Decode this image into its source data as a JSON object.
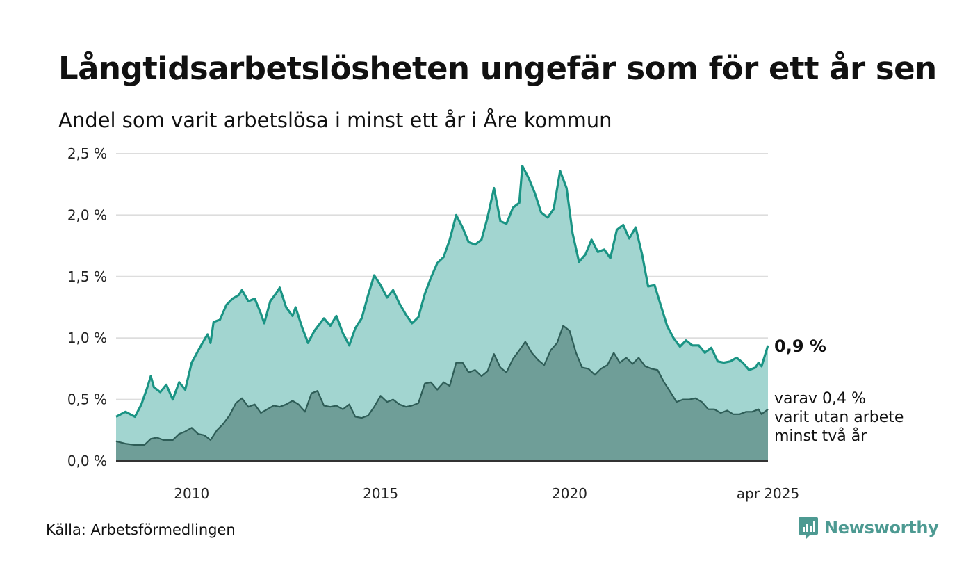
{
  "title": "Långtidsarbetslösheten ungefär som för ett år sen",
  "subtitle": "Andel som varit arbetslösa i minst ett år i Åre kommun",
  "source": "Källa: Arbetsförmedlingen",
  "brand": {
    "name": "Newsworthy",
    "icon": "newsworthy-logo-icon",
    "color": "#4d9a92"
  },
  "annotations": {
    "total_label": "0,9 %",
    "sub_label_lines": [
      "varav 0,4 %",
      "varit utan arbete",
      "minst två år"
    ]
  },
  "chart_data": {
    "type": "area",
    "title": "Långtidsarbetslösheten ungefär som för ett år sen",
    "subtitle": "Andel som varit arbetslösa i minst ett år i Åre kommun",
    "ylim": [
      0,
      2.5
    ],
    "y_ticks": [
      {
        "value": 0.0,
        "label": "0,0 %"
      },
      {
        "value": 0.5,
        "label": "0,5 %"
      },
      {
        "value": 1.0,
        "label": "1,0 %"
      },
      {
        "value": 1.5,
        "label": "1,5 %"
      },
      {
        "value": 2.0,
        "label": "2,0 %"
      },
      {
        "value": 2.5,
        "label": "2,5 %"
      }
    ],
    "x_range": [
      2008.0,
      2025.25
    ],
    "x_ticks": [
      {
        "value": 2010,
        "label": "2010"
      },
      {
        "value": 2015,
        "label": "2015"
      },
      {
        "value": 2020,
        "label": "2020"
      },
      {
        "value": 2025.25,
        "label": "apr 2025"
      }
    ],
    "grid": true,
    "colors": {
      "total_line": "#1a9484",
      "total_fill": "#a2d5d0",
      "long_line": "#2e5d57",
      "long_fill": "#6f9e98",
      "grid": "#dddddd",
      "axis": "#333333"
    },
    "series": [
      {
        "key": "total",
        "points": [
          [
            2008.0,
            0.36
          ],
          [
            2008.25,
            0.4
          ],
          [
            2008.5,
            0.36
          ],
          [
            2008.67,
            0.46
          ],
          [
            2008.83,
            0.6
          ],
          [
            2008.92,
            0.69
          ],
          [
            2009.0,
            0.6
          ],
          [
            2009.17,
            0.56
          ],
          [
            2009.33,
            0.62
          ],
          [
            2009.5,
            0.5
          ],
          [
            2009.67,
            0.64
          ],
          [
            2009.83,
            0.58
          ],
          [
            2010.0,
            0.8
          ],
          [
            2010.25,
            0.94
          ],
          [
            2010.42,
            1.03
          ],
          [
            2010.5,
            0.96
          ],
          [
            2010.58,
            1.13
          ],
          [
            2010.75,
            1.15
          ],
          [
            2010.92,
            1.27
          ],
          [
            2011.08,
            1.32
          ],
          [
            2011.25,
            1.35
          ],
          [
            2011.33,
            1.39
          ],
          [
            2011.5,
            1.3
          ],
          [
            2011.67,
            1.32
          ],
          [
            2011.83,
            1.2
          ],
          [
            2011.92,
            1.12
          ],
          [
            2012.08,
            1.3
          ],
          [
            2012.25,
            1.37
          ],
          [
            2012.33,
            1.41
          ],
          [
            2012.5,
            1.25
          ],
          [
            2012.67,
            1.18
          ],
          [
            2012.75,
            1.25
          ],
          [
            2012.92,
            1.09
          ],
          [
            2013.08,
            0.96
          ],
          [
            2013.25,
            1.06
          ],
          [
            2013.5,
            1.16
          ],
          [
            2013.67,
            1.1
          ],
          [
            2013.83,
            1.18
          ],
          [
            2014.0,
            1.04
          ],
          [
            2014.17,
            0.94
          ],
          [
            2014.33,
            1.08
          ],
          [
            2014.5,
            1.16
          ],
          [
            2014.67,
            1.35
          ],
          [
            2014.83,
            1.51
          ],
          [
            2015.0,
            1.43
          ],
          [
            2015.17,
            1.33
          ],
          [
            2015.33,
            1.39
          ],
          [
            2015.5,
            1.28
          ],
          [
            2015.67,
            1.19
          ],
          [
            2015.83,
            1.12
          ],
          [
            2016.0,
            1.17
          ],
          [
            2016.17,
            1.36
          ],
          [
            2016.33,
            1.49
          ],
          [
            2016.5,
            1.61
          ],
          [
            2016.67,
            1.66
          ],
          [
            2016.83,
            1.8
          ],
          [
            2017.0,
            2.0
          ],
          [
            2017.17,
            1.9
          ],
          [
            2017.33,
            1.78
          ],
          [
            2017.5,
            1.76
          ],
          [
            2017.67,
            1.8
          ],
          [
            2017.83,
            1.98
          ],
          [
            2018.0,
            2.22
          ],
          [
            2018.17,
            1.95
          ],
          [
            2018.33,
            1.93
          ],
          [
            2018.5,
            2.06
          ],
          [
            2018.67,
            2.1
          ],
          [
            2018.75,
            2.4
          ],
          [
            2018.92,
            2.3
          ],
          [
            2019.08,
            2.18
          ],
          [
            2019.25,
            2.02
          ],
          [
            2019.42,
            1.98
          ],
          [
            2019.58,
            2.05
          ],
          [
            2019.75,
            2.36
          ],
          [
            2019.92,
            2.22
          ],
          [
            2020.08,
            1.85
          ],
          [
            2020.25,
            1.62
          ],
          [
            2020.42,
            1.68
          ],
          [
            2020.58,
            1.8
          ],
          [
            2020.75,
            1.7
          ],
          [
            2020.92,
            1.72
          ],
          [
            2021.08,
            1.65
          ],
          [
            2021.25,
            1.88
          ],
          [
            2021.42,
            1.92
          ],
          [
            2021.58,
            1.81
          ],
          [
            2021.75,
            1.9
          ],
          [
            2021.92,
            1.68
          ],
          [
            2022.08,
            1.42
          ],
          [
            2022.25,
            1.43
          ],
          [
            2022.42,
            1.26
          ],
          [
            2022.58,
            1.1
          ],
          [
            2022.75,
            1.0
          ],
          [
            2022.92,
            0.93
          ],
          [
            2023.08,
            0.98
          ],
          [
            2023.25,
            0.94
          ],
          [
            2023.42,
            0.94
          ],
          [
            2023.58,
            0.88
          ],
          [
            2023.75,
            0.92
          ],
          [
            2023.92,
            0.81
          ],
          [
            2024.08,
            0.8
          ],
          [
            2024.25,
            0.81
          ],
          [
            2024.42,
            0.84
          ],
          [
            2024.58,
            0.8
          ],
          [
            2024.75,
            0.74
          ],
          [
            2024.92,
            0.76
          ],
          [
            2025.0,
            0.8
          ],
          [
            2025.08,
            0.77
          ],
          [
            2025.25,
            0.94
          ]
        ]
      },
      {
        "key": "long",
        "points": [
          [
            2008.0,
            0.16
          ],
          [
            2008.25,
            0.14
          ],
          [
            2008.5,
            0.13
          ],
          [
            2008.75,
            0.13
          ],
          [
            2008.92,
            0.18
          ],
          [
            2009.08,
            0.19
          ],
          [
            2009.25,
            0.17
          ],
          [
            2009.5,
            0.17
          ],
          [
            2009.67,
            0.22
          ],
          [
            2009.83,
            0.24
          ],
          [
            2010.0,
            0.27
          ],
          [
            2010.17,
            0.22
          ],
          [
            2010.33,
            0.21
          ],
          [
            2010.5,
            0.17
          ],
          [
            2010.67,
            0.25
          ],
          [
            2010.83,
            0.3
          ],
          [
            2011.0,
            0.37
          ],
          [
            2011.17,
            0.47
          ],
          [
            2011.33,
            0.51
          ],
          [
            2011.5,
            0.44
          ],
          [
            2011.67,
            0.46
          ],
          [
            2011.83,
            0.39
          ],
          [
            2012.0,
            0.42
          ],
          [
            2012.17,
            0.45
          ],
          [
            2012.33,
            0.44
          ],
          [
            2012.5,
            0.46
          ],
          [
            2012.67,
            0.49
          ],
          [
            2012.83,
            0.46
          ],
          [
            2013.0,
            0.4
          ],
          [
            2013.17,
            0.55
          ],
          [
            2013.33,
            0.57
          ],
          [
            2013.5,
            0.45
          ],
          [
            2013.67,
            0.44
          ],
          [
            2013.83,
            0.45
          ],
          [
            2014.0,
            0.42
          ],
          [
            2014.17,
            0.46
          ],
          [
            2014.33,
            0.36
          ],
          [
            2014.5,
            0.35
          ],
          [
            2014.67,
            0.37
          ],
          [
            2014.83,
            0.44
          ],
          [
            2015.0,
            0.53
          ],
          [
            2015.17,
            0.48
          ],
          [
            2015.33,
            0.5
          ],
          [
            2015.5,
            0.46
          ],
          [
            2015.67,
            0.44
          ],
          [
            2015.83,
            0.45
          ],
          [
            2016.0,
            0.47
          ],
          [
            2016.17,
            0.63
          ],
          [
            2016.33,
            0.64
          ],
          [
            2016.5,
            0.58
          ],
          [
            2016.67,
            0.64
          ],
          [
            2016.83,
            0.61
          ],
          [
            2017.0,
            0.8
          ],
          [
            2017.17,
            0.8
          ],
          [
            2017.33,
            0.72
          ],
          [
            2017.5,
            0.74
          ],
          [
            2017.67,
            0.69
          ],
          [
            2017.83,
            0.73
          ],
          [
            2018.0,
            0.87
          ],
          [
            2018.17,
            0.76
          ],
          [
            2018.33,
            0.72
          ],
          [
            2018.5,
            0.83
          ],
          [
            2018.67,
            0.9
          ],
          [
            2018.83,
            0.97
          ],
          [
            2019.0,
            0.88
          ],
          [
            2019.17,
            0.82
          ],
          [
            2019.33,
            0.78
          ],
          [
            2019.5,
            0.9
          ],
          [
            2019.67,
            0.96
          ],
          [
            2019.83,
            1.1
          ],
          [
            2020.0,
            1.06
          ],
          [
            2020.17,
            0.88
          ],
          [
            2020.33,
            0.76
          ],
          [
            2020.5,
            0.75
          ],
          [
            2020.67,
            0.7
          ],
          [
            2020.83,
            0.75
          ],
          [
            2021.0,
            0.78
          ],
          [
            2021.17,
            0.88
          ],
          [
            2021.33,
            0.8
          ],
          [
            2021.5,
            0.84
          ],
          [
            2021.67,
            0.79
          ],
          [
            2021.83,
            0.84
          ],
          [
            2022.0,
            0.77
          ],
          [
            2022.17,
            0.75
          ],
          [
            2022.33,
            0.74
          ],
          [
            2022.5,
            0.64
          ],
          [
            2022.67,
            0.56
          ],
          [
            2022.83,
            0.48
          ],
          [
            2023.0,
            0.5
          ],
          [
            2023.17,
            0.5
          ],
          [
            2023.33,
            0.51
          ],
          [
            2023.5,
            0.48
          ],
          [
            2023.67,
            0.42
          ],
          [
            2023.83,
            0.42
          ],
          [
            2024.0,
            0.39
          ],
          [
            2024.17,
            0.41
          ],
          [
            2024.33,
            0.38
          ],
          [
            2024.5,
            0.38
          ],
          [
            2024.67,
            0.4
          ],
          [
            2024.83,
            0.4
          ],
          [
            2025.0,
            0.42
          ],
          [
            2025.08,
            0.38
          ],
          [
            2025.25,
            0.42
          ]
        ]
      }
    ]
  }
}
